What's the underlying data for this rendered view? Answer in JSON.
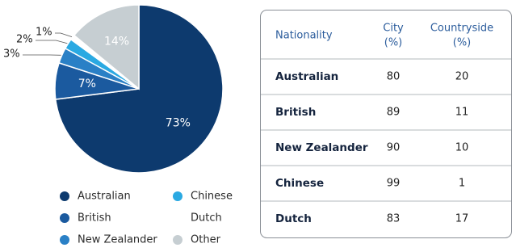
{
  "chart_data": {
    "type": "pie",
    "categories": [
      "Australian",
      "British",
      "New Zealander",
      "Chinese",
      "Dutch",
      "Other"
    ],
    "values": [
      73,
      7,
      3,
      2,
      1,
      14
    ],
    "value_labels": [
      "73%",
      "7%",
      "3%",
      "2%",
      "1%",
      "14%"
    ],
    "colors": [
      "#0d3a6e",
      "#1b5a9f",
      "#2a80c6",
      "#2aa9e2",
      "#ffffff",
      "#c6ced2"
    ],
    "legend": "bottom"
  },
  "table": {
    "header": [
      [
        "Nationality"
      ],
      [
        "City",
        "(%)"
      ],
      [
        "Countryside",
        "(%)"
      ]
    ],
    "rows": [
      [
        "Australian",
        80,
        20
      ],
      [
        "British",
        89,
        11
      ],
      [
        "New Zealander",
        90,
        10
      ],
      [
        "Chinese",
        99,
        1
      ],
      [
        "Dutch",
        83,
        17
      ]
    ]
  }
}
